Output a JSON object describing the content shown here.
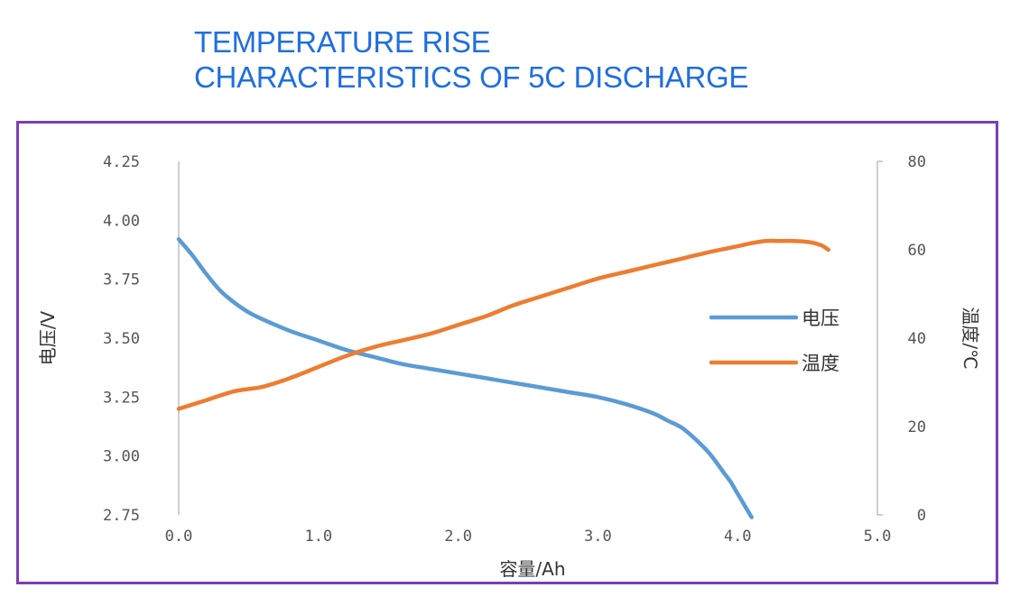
{
  "header": {
    "title_line1": "TEMPERATURE RISE",
    "title_line2": "CHARACTERISTICS OF 5C DISCHARGE"
  },
  "colors": {
    "title": "#1f6fe0",
    "frame": "#7a3fb5",
    "voltage": "#5b9bd5",
    "temperature": "#ed7d31",
    "axis": "#bfbfbf"
  },
  "chart_data": {
    "type": "line",
    "title": "TEMPERATURE RISE CHARACTERISTICS OF 5C DISCHARGE",
    "xlabel": "容量/Ah",
    "ylabel": "电压/V",
    "y2label": "温度/℃",
    "xlim": [
      0,
      5
    ],
    "ylim": [
      2.75,
      4.25
    ],
    "y2lim": [
      0,
      80
    ],
    "x_ticks": [
      "0.0",
      "1.0",
      "2.0",
      "3.0",
      "4.0",
      "5.0"
    ],
    "y_ticks": [
      "2.75",
      "3.00",
      "3.25",
      "3.50",
      "3.75",
      "4.00",
      "4.25"
    ],
    "y2_ticks": [
      "0",
      "20",
      "40",
      "60",
      "80"
    ],
    "grid": false,
    "legend_position": "right",
    "series": [
      {
        "name": "电压",
        "axis": "left",
        "color": "#5b9bd5",
        "x": [
          0.0,
          0.1,
          0.2,
          0.3,
          0.4,
          0.5,
          0.6,
          0.8,
          1.0,
          1.2,
          1.4,
          1.6,
          1.8,
          2.0,
          2.2,
          2.4,
          2.6,
          2.8,
          3.0,
          3.2,
          3.4,
          3.5,
          3.6,
          3.7,
          3.8,
          3.9,
          3.95,
          4.0,
          4.05,
          4.1
        ],
        "values": [
          3.92,
          3.85,
          3.77,
          3.7,
          3.65,
          3.61,
          3.58,
          3.53,
          3.49,
          3.45,
          3.42,
          3.39,
          3.37,
          3.35,
          3.33,
          3.31,
          3.29,
          3.27,
          3.25,
          3.22,
          3.18,
          3.15,
          3.12,
          3.07,
          3.01,
          2.93,
          2.89,
          2.84,
          2.79,
          2.74
        ]
      },
      {
        "name": "温度",
        "axis": "right",
        "color": "#ed7d31",
        "x": [
          0.0,
          0.2,
          0.4,
          0.6,
          0.8,
          1.0,
          1.2,
          1.4,
          1.6,
          1.8,
          2.0,
          2.2,
          2.4,
          2.6,
          2.8,
          3.0,
          3.2,
          3.4,
          3.6,
          3.8,
          4.0,
          4.1,
          4.2,
          4.3,
          4.4,
          4.5,
          4.55,
          4.6,
          4.65
        ],
        "values": [
          24,
          26,
          28,
          29,
          31,
          33.5,
          36,
          38,
          39.5,
          41,
          43,
          45,
          47.5,
          49.5,
          51.5,
          53.5,
          55,
          56.5,
          58,
          59.5,
          60.8,
          61.5,
          62,
          62,
          62,
          61.8,
          61.5,
          61,
          60
        ]
      }
    ]
  }
}
